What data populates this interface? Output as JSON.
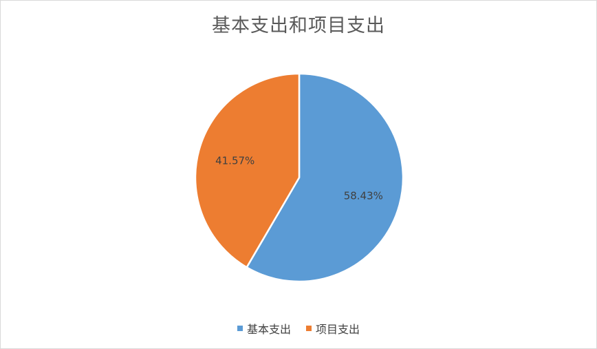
{
  "chart_data": {
    "type": "pie",
    "title": "基本支出和项目支出",
    "categories": [
      "基本支出",
      "项目支出"
    ],
    "values": [
      58.43,
      41.57
    ],
    "labels": [
      "58.43%",
      "41.57%"
    ],
    "colors": [
      "#5b9bd5",
      "#ed7d31"
    ],
    "legend_position": "bottom"
  }
}
